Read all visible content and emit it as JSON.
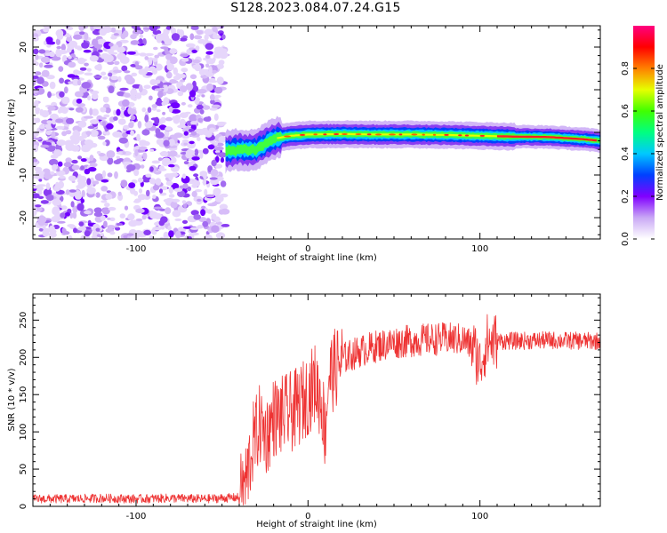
{
  "title": "S128.2023.084.07.24.G15",
  "chart_data": [
    {
      "type": "heatmap",
      "xlabel": "Height of straight line (km)",
      "ylabel": "Frequency (Hz)",
      "xlim": [
        -160,
        170
      ],
      "ylim": [
        -25,
        25
      ],
      "xticks": [
        -100,
        0,
        100
      ],
      "yticks": [
        -20,
        -10,
        0,
        10,
        20
      ],
      "colorbar": {
        "label": "Normalized spectral amplitude",
        "range": [
          0,
          1
        ],
        "ticks": [
          0.0,
          0.2,
          0.4,
          0.6,
          0.8
        ],
        "colors": [
          "#ffffff",
          "#c9a8f5",
          "#8000ff",
          "#0040ff",
          "#00c8ff",
          "#00ff80",
          "#40ff00",
          "#e6ff00",
          "#ff8000",
          "#ff0000",
          "#ff0080"
        ]
      },
      "noise_region": {
        "x": [
          -160,
          -48
        ],
        "y": [
          -25,
          25
        ]
      },
      "signal_ridge": {
        "x": [
          -48,
          -40,
          -30,
          -20,
          -10,
          0,
          20,
          40,
          60,
          80,
          100,
          120,
          140,
          160,
          170
        ],
        "frequency": [
          -4.5,
          -4,
          -4,
          -1.5,
          -0.8,
          -0.5,
          -0.4,
          -0.5,
          -0.5,
          -0.6,
          -0.8,
          -1,
          -1.1,
          -1.6,
          -2
        ]
      }
    },
    {
      "type": "line",
      "xlabel": "Height of straight line (km)",
      "ylabel": "SNR (10 * v/v)",
      "xlim": [
        -160,
        170
      ],
      "ylim": [
        0,
        285
      ],
      "xticks": [
        -100,
        0,
        100
      ],
      "yticks": [
        0,
        50,
        100,
        150,
        200,
        250
      ],
      "line_color": "#ee3333",
      "x": [
        -160,
        -140,
        -120,
        -100,
        -80,
        -60,
        -40,
        -36,
        -32,
        -28,
        -24,
        -20,
        -16,
        -12,
        -8,
        -4,
        0,
        4,
        8,
        10,
        12,
        16,
        20,
        30,
        40,
        50,
        60,
        70,
        80,
        90,
        96,
        100,
        104,
        110,
        120,
        140,
        160,
        170
      ],
      "y": [
        10,
        10,
        11,
        10,
        11,
        10,
        12,
        35,
        85,
        110,
        95,
        120,
        120,
        125,
        128,
        138,
        150,
        165,
        140,
        100,
        175,
        185,
        198,
        208,
        215,
        220,
        222,
        224,
        225,
        224,
        215,
        190,
        220,
        222,
        222,
        223,
        222,
        222
      ]
    }
  ]
}
